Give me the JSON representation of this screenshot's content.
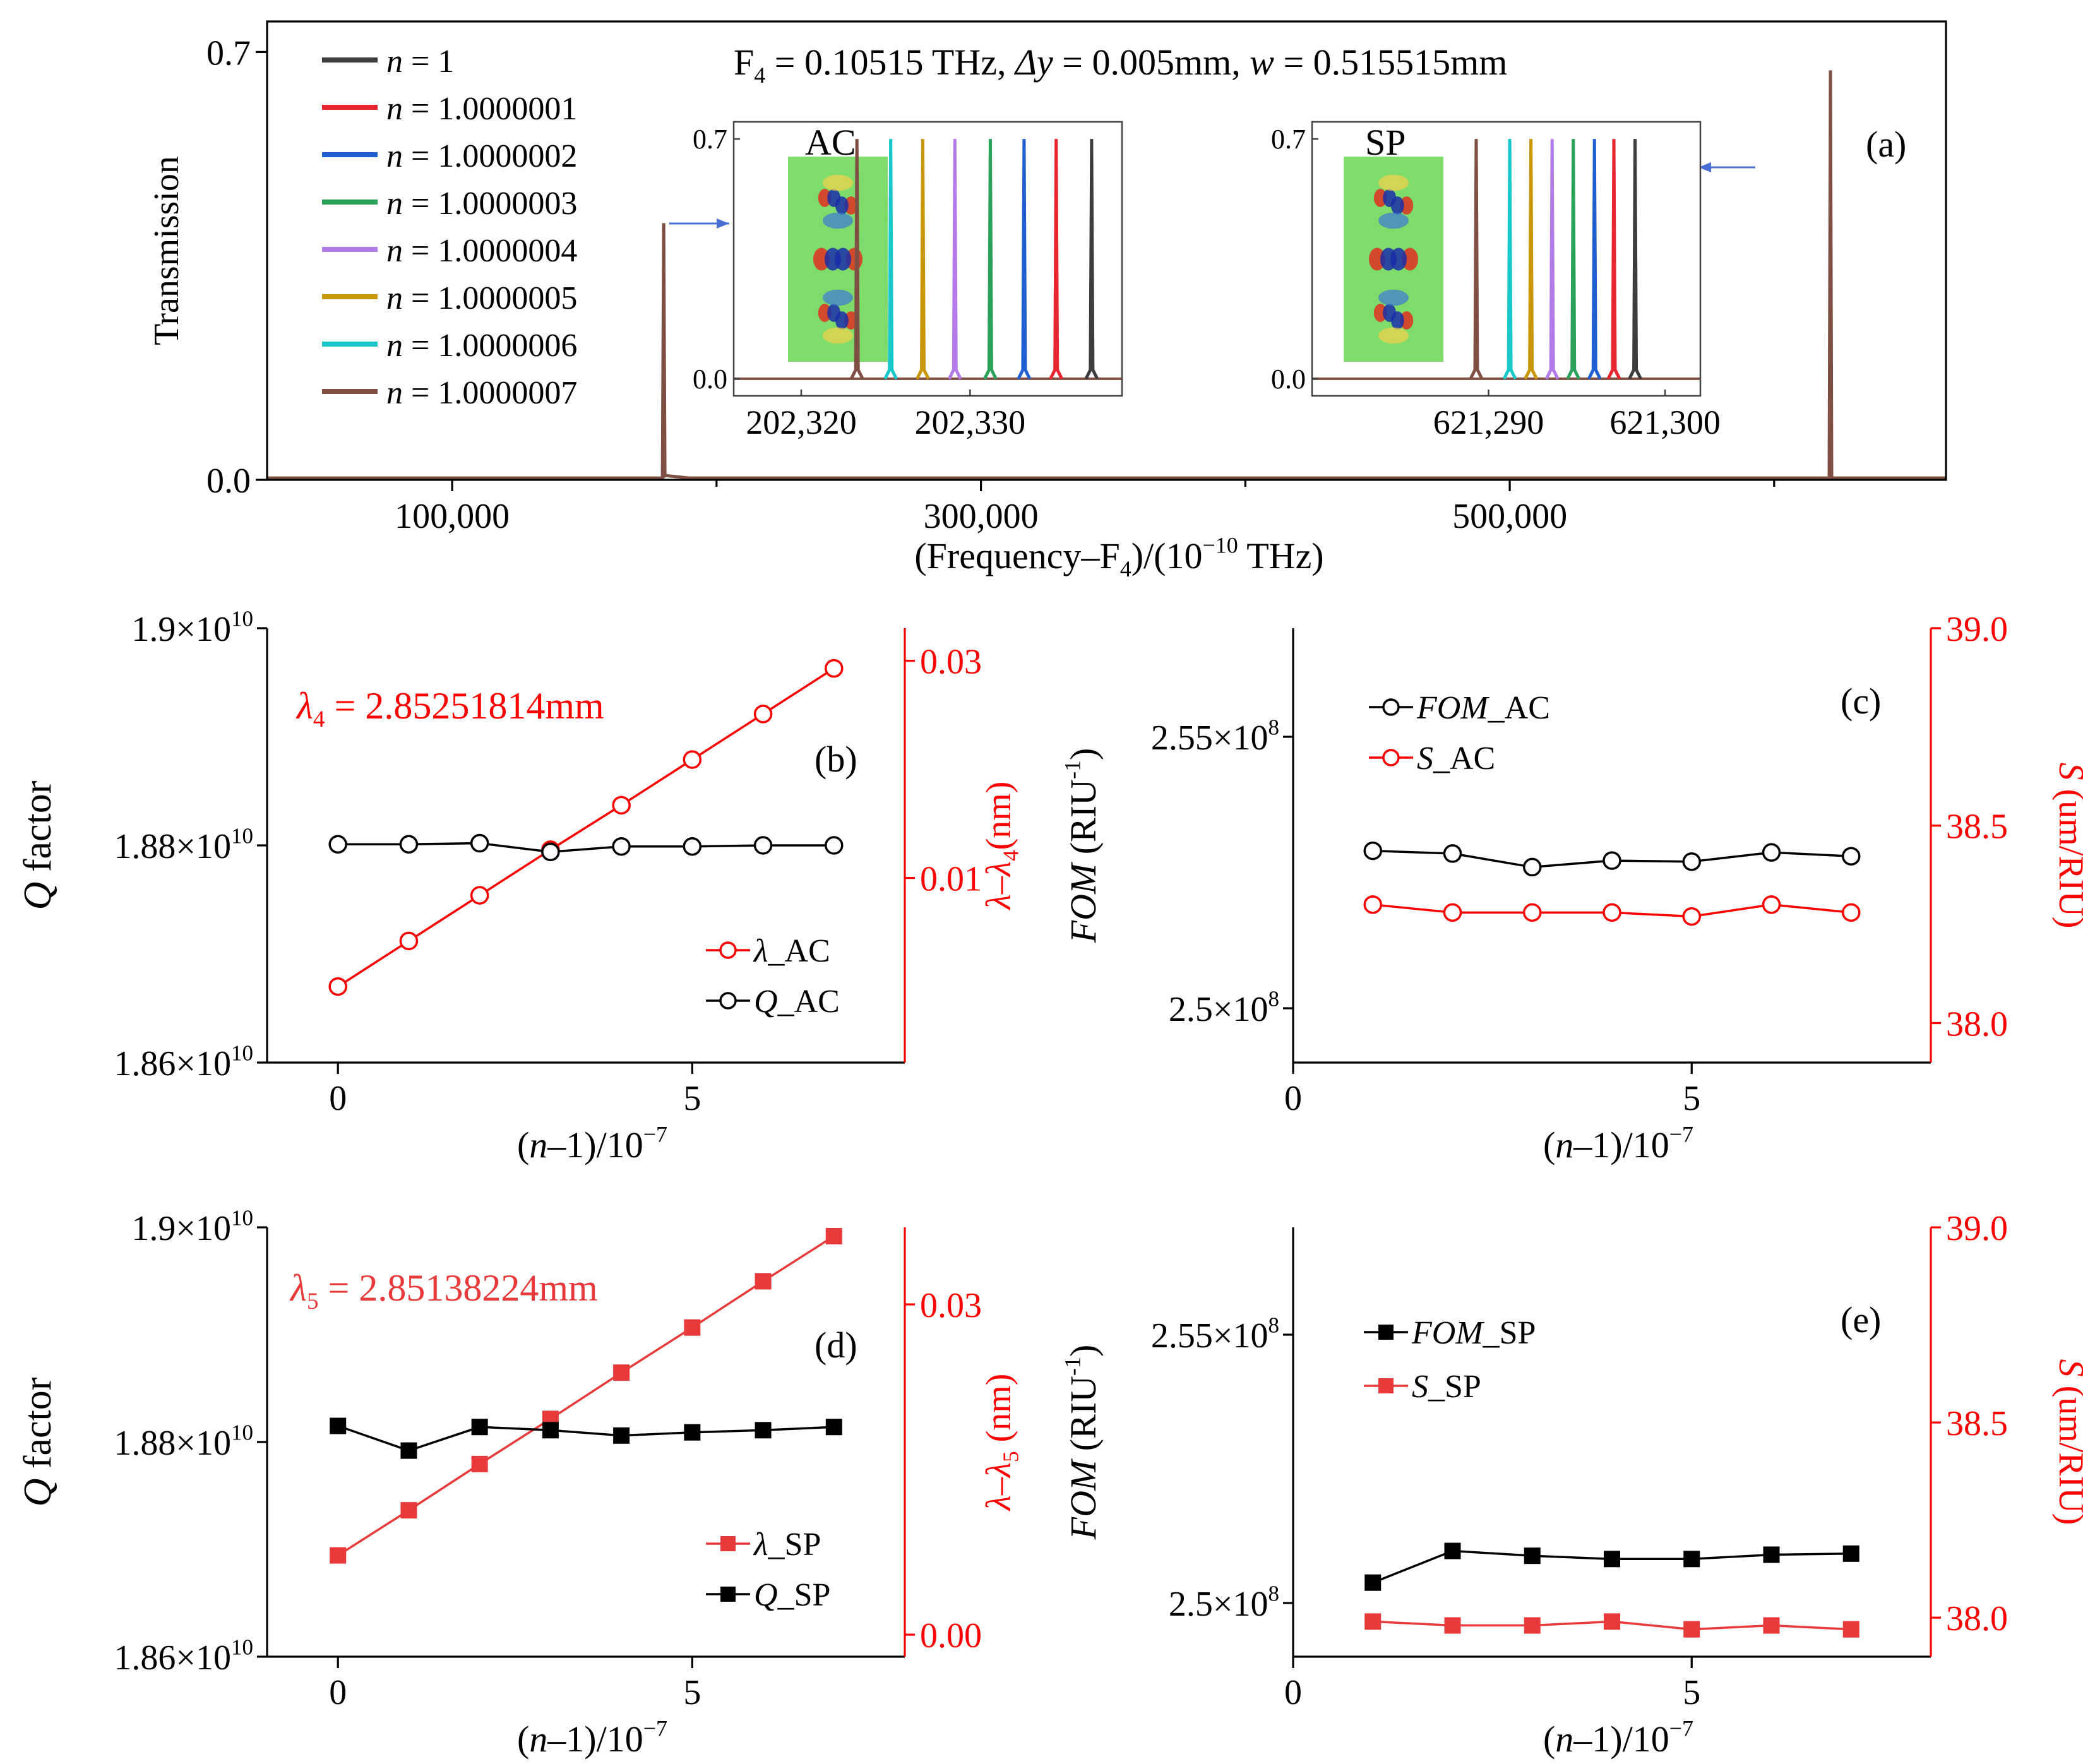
{
  "colors": {
    "axis": "#000000",
    "red_axis": "#ff0000",
    "red_series": "#e83a3a",
    "series": [
      "#3d3d3d",
      "#e8262f",
      "#1f5fd1",
      "#2aa259",
      "#b37be8",
      "#c99606",
      "#19c9c9",
      "#7f4f43"
    ],
    "arrow": "#4a6fd4",
    "field_bg": "#7ddc6a"
  },
  "chart_data": [
    {
      "id": "a",
      "type": "line",
      "panel_label": "(a)",
      "title_parts": {
        "F": "F",
        "F_sub": "4",
        "F_val": " = 0.10515 THz,  ",
        "dy": "Δy",
        "dy_val": " = 0.005mm, ",
        "w": "w",
        "w_val": " = 0.515515mm"
      },
      "ylabel": "Transmission",
      "xlabel_parts": {
        "a": "(Frequency–F",
        "sub": "4",
        "b": ")/(10",
        "sup": "−10",
        "c": " THz)"
      },
      "ylim": [
        0.0,
        0.75
      ],
      "xlim": [
        30000,
        665000
      ],
      "yticks": [
        {
          "v": 0.0,
          "label": "0.0"
        },
        {
          "v": 0.7,
          "label": "0.7"
        }
      ],
      "xticks": [
        {
          "v": 100000,
          "label": "100,000"
        },
        {
          "v": 300000,
          "label": "300,000"
        },
        {
          "v": 500000,
          "label": "500,000"
        }
      ],
      "peaks": [
        {
          "x": 180000,
          "y": 0.42,
          "name": "AC resonance"
        },
        {
          "x": 621300,
          "y": 0.67,
          "name": "SP resonance"
        }
      ],
      "legend": [
        {
          "n": "n",
          "value": " = 1"
        },
        {
          "n": "n",
          "value": " = 1.0000001"
        },
        {
          "n": "n",
          "value": " = 1.0000002"
        },
        {
          "n": "n",
          "value": " = 1.0000003"
        },
        {
          "n": "n",
          "value": " = 1.0000004"
        },
        {
          "n": "n",
          "value": " = 1.0000005"
        },
        {
          "n": "n",
          "value": " = 1.0000006"
        },
        {
          "n": "n",
          "value": " = 1.0000007"
        }
      ],
      "insets": [
        {
          "label": "AC",
          "xlim": [
            202316,
            202339
          ],
          "ylim": [
            -0.05,
            0.75
          ],
          "yticks": [
            {
              "v": 0.0,
              "label": "0.0"
            },
            {
              "v": 0.7,
              "label": "0.7"
            }
          ],
          "xticks": [
            {
              "v": 202320,
              "label": "202,320"
            },
            {
              "v": 202330,
              "label": "202,330"
            }
          ],
          "peaks_x": [
            202337.2,
            202335.1,
            202333.2,
            202331.2,
            202329.1,
            202327.2,
            202325.3,
            202323.3
          ],
          "peak_y": 0.7
        },
        {
          "label": "SP",
          "xlim": [
            621280,
            621302
          ],
          "ylim": [
            -0.05,
            0.75
          ],
          "yticks": [
            {
              "v": 0.0,
              "label": "0.0"
            },
            {
              "v": 0.7,
              "label": "0.7"
            }
          ],
          "xticks": [
            {
              "v": 621290,
              "label": "621,290"
            },
            {
              "v": 621300,
              "label": "621,300"
            }
          ],
          "peaks_x": [
            621298.3,
            621297.1,
            621296.0,
            621294.8,
            621293.6,
            621292.4,
            621291.2,
            621289.3
          ],
          "peak_y": 0.7
        }
      ]
    },
    {
      "id": "b",
      "type": "line",
      "panel_label": "(b)",
      "annotation_parts": {
        "lambda": "λ",
        "sub": "4",
        "rest": " = 2.85251814mm"
      },
      "ylabel_left_parts": {
        "q": "Q",
        "rest": " factor"
      },
      "ylabel_right_parts": {
        "a": "λ",
        "dash": "–",
        "b": "λ",
        "sub": "4",
        "rest": "(nm)"
      },
      "xlabel_parts": {
        "a": "(",
        "n": "n",
        "b": "–1)/10",
        "sup": "−7"
      },
      "xlim": [
        -1,
        8
      ],
      "ylim_left": [
        1.86,
        1.9
      ],
      "ylim_right": [
        -0.007,
        0.033
      ],
      "xticks": [
        {
          "v": 0,
          "label": "0"
        },
        {
          "v": 5,
          "label": "5"
        }
      ],
      "yticks_left": [
        {
          "v": 1.86,
          "m": "1.86×10",
          "e": "10"
        },
        {
          "v": 1.88,
          "m": "1.88×10",
          "e": "10"
        },
        {
          "v": 1.9,
          "m": "1.9×10",
          "e": "10"
        }
      ],
      "yticks_right": [
        {
          "v": 0.01,
          "label": "0.01"
        },
        {
          "v": 0.03,
          "label": "0.03"
        }
      ],
      "series": [
        {
          "name_sym": "λ",
          "name_rest": "_AC",
          "axis": "right",
          "marker": "circle",
          "color": "red",
          "x": [
            0,
            1,
            2,
            3,
            4,
            5,
            6,
            7
          ],
          "values": [
            0.0,
            0.0042,
            0.0084,
            0.0126,
            0.0167,
            0.0209,
            0.0251,
            0.0293
          ]
        },
        {
          "name_sym": "Q",
          "name_rest": "_AC",
          "axis": "left",
          "marker": "circle",
          "color": "black",
          "x": [
            0,
            1,
            2,
            3,
            4,
            5,
            6,
            7
          ],
          "values": [
            1.8801,
            1.8801,
            1.8802,
            1.8794,
            1.8799,
            1.8799,
            1.88,
            1.88
          ]
        }
      ]
    },
    {
      "id": "c",
      "type": "line",
      "panel_label": "(c)",
      "ylabel_left_parts": {
        "italic": "FOM",
        "rest": " (RIU",
        "sup": "-1",
        "close": ")"
      },
      "ylabel_right_parts": {
        "italic": "S",
        "rest": " (um/RIU)"
      },
      "xlabel_parts": {
        "a": "(",
        "n": "n",
        "b": "–1)/10",
        "sup": "−7"
      },
      "xlim": [
        0,
        8
      ],
      "ylim_left": [
        2.49,
        2.57
      ],
      "ylim_right": [
        37.9,
        39.0
      ],
      "xticks": [
        {
          "v": 0,
          "label": "0"
        },
        {
          "v": 5,
          "label": "5"
        }
      ],
      "yticks_left": [
        {
          "v": 2.5,
          "m": "2.5×10",
          "e": "8"
        },
        {
          "v": 2.55,
          "m": "2.55×10",
          "e": "8"
        }
      ],
      "yticks_right": [
        {
          "v": 38.0,
          "label": "38.0"
        },
        {
          "v": 38.5,
          "label": "38.5"
        },
        {
          "v": 39.0,
          "label": "39.0"
        }
      ],
      "series": [
        {
          "name_sym": "FOM",
          "name_rest": "_AC",
          "axis": "left",
          "marker": "circle",
          "color": "black",
          "x": [
            1,
            2,
            3,
            4,
            5,
            6,
            7
          ],
          "values": [
            2.529,
            2.5285,
            2.526,
            2.5272,
            2.527,
            2.5287,
            2.528
          ]
        },
        {
          "name_sym": "S",
          "name_rest": "_AC",
          "axis": "right",
          "marker": "circle",
          "color": "red",
          "x": [
            1,
            2,
            3,
            4,
            5,
            6,
            7
          ],
          "values": [
            38.3,
            38.28,
            38.28,
            38.28,
            38.27,
            38.3,
            38.28
          ]
        }
      ]
    },
    {
      "id": "d",
      "type": "line",
      "panel_label": "(d)",
      "annotation_parts": {
        "lambda": "λ",
        "sub": "5",
        "rest": " = 2.85138224mm"
      },
      "ylabel_left_parts": {
        "q": "Q",
        "rest": " factor"
      },
      "ylabel_right_parts": {
        "a": "λ",
        "dash": "–",
        "b": "λ",
        "sub": "5",
        "rest": " (nm)"
      },
      "xlabel_parts": {
        "a": "(",
        "n": "n",
        "b": "–1)/10",
        "sup": "−7"
      },
      "xlim": [
        -1,
        8
      ],
      "ylim_left": [
        1.86,
        1.9
      ],
      "ylim_right": [
        -0.002,
        0.037
      ],
      "xticks": [
        {
          "v": 0,
          "label": "0"
        },
        {
          "v": 5,
          "label": "5"
        }
      ],
      "yticks_left": [
        {
          "v": 1.86,
          "m": "1.86×10",
          "e": "10"
        },
        {
          "v": 1.88,
          "m": "1.88×10",
          "e": "10"
        },
        {
          "v": 1.9,
          "m": "1.9×10",
          "e": "10"
        }
      ],
      "yticks_right": [
        {
          "v": 0.0,
          "label": "0.00"
        },
        {
          "v": 0.03,
          "label": "0.03"
        }
      ],
      "series": [
        {
          "name_sym": "λ",
          "name_rest": "_SP",
          "axis": "right",
          "marker": "square",
          "color": "red",
          "x": [
            0,
            1,
            2,
            3,
            4,
            5,
            6,
            7
          ],
          "values": [
            0.0072,
            0.0113,
            0.0155,
            0.0196,
            0.0238,
            0.0279,
            0.0321,
            0.0362
          ]
        },
        {
          "name_sym": "Q",
          "name_rest": "_SP",
          "axis": "left",
          "marker": "square",
          "color": "black",
          "x": [
            0,
            1,
            2,
            3,
            4,
            5,
            6,
            7
          ],
          "values": [
            1.8815,
            1.8792,
            1.8814,
            1.8811,
            1.8806,
            1.8809,
            1.8811,
            1.8814
          ]
        }
      ]
    },
    {
      "id": "e",
      "type": "line",
      "panel_label": "(e)",
      "ylabel_left_parts": {
        "italic": "FOM",
        "rest": " (RIU",
        "sup": "-1",
        "close": ")"
      },
      "ylabel_right_parts": {
        "italic": "S",
        "rest": " (um/RIU)"
      },
      "xlabel_parts": {
        "a": "(",
        "n": "n",
        "b": "–1)/10",
        "sup": "−7"
      },
      "xlim": [
        0,
        8
      ],
      "ylim_left": [
        2.49,
        2.57
      ],
      "ylim_right": [
        37.9,
        39.0
      ],
      "xticks": [
        {
          "v": 0,
          "label": "0"
        },
        {
          "v": 5,
          "label": "5"
        }
      ],
      "yticks_left": [
        {
          "v": 2.5,
          "m": "2.5×10",
          "e": "8"
        },
        {
          "v": 2.55,
          "m": "2.55×10",
          "e": "8"
        }
      ],
      "yticks_right": [
        {
          "v": 38.0,
          "label": "38.0"
        },
        {
          "v": 38.5,
          "label": "38.5"
        },
        {
          "v": 39.0,
          "label": "39.0"
        }
      ],
      "series": [
        {
          "name_sym": "FOM",
          "name_rest": "_SP",
          "axis": "left",
          "marker": "square",
          "color": "black",
          "x": [
            1,
            2,
            3,
            4,
            5,
            6,
            7
          ],
          "values": [
            2.5038,
            2.5097,
            2.5088,
            2.5082,
            2.5082,
            2.509,
            2.5092
          ]
        },
        {
          "name_sym": "S",
          "name_rest": "_SP",
          "axis": "right",
          "marker": "square",
          "color": "red",
          "x": [
            1,
            2,
            3,
            4,
            5,
            6,
            7
          ],
          "values": [
            37.99,
            37.98,
            37.98,
            37.99,
            37.97,
            37.98,
            37.97
          ]
        }
      ]
    }
  ]
}
